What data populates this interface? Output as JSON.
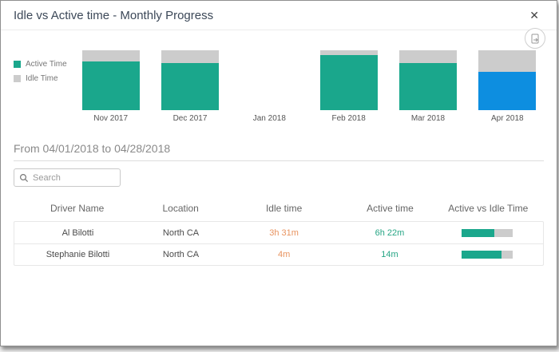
{
  "modal": {
    "title": "Idle vs Active time - Monthly Progress",
    "close_icon": "✕"
  },
  "colors": {
    "active": "#1aa78c",
    "active_highlight": "#0d8ee0",
    "idle": "#cccccc",
    "idle_text": "#e8935f",
    "active_text": "#27a585"
  },
  "legend": {
    "items": [
      {
        "label": "Active Time",
        "color": "#1aa78c"
      },
      {
        "label": "Idle Time",
        "color": "#cccccc"
      }
    ]
  },
  "chart_data": {
    "type": "bar",
    "stacked": true,
    "categories": [
      "Nov 2017",
      "Dec 2017",
      "Jan 2018",
      "Feb 2018",
      "Mar 2018",
      "Apr 2018"
    ],
    "series": [
      {
        "name": "Active Time",
        "values": [
          82,
          79,
          0,
          92,
          79,
          64
        ]
      },
      {
        "name": "Idle Time",
        "values": [
          18,
          21,
          0,
          8,
          21,
          36
        ]
      }
    ],
    "unit": "percent_of_bar",
    "highlight_index": 5,
    "legend_position": "left",
    "grid": false,
    "ylim": [
      0,
      100
    ]
  },
  "filters": {
    "date_range": "From 04/01/2018 to 04/28/2018",
    "search_placeholder": "Search"
  },
  "table": {
    "columns": [
      "Driver Name",
      "Location",
      "Idle time",
      "Active time",
      "Active vs Idle Time"
    ],
    "rows": [
      {
        "driver": "Al Bilotti",
        "location": "North CA",
        "idle": "3h 31m",
        "active": "6h 22m",
        "active_pct": 64
      },
      {
        "driver": "Stephanie Bilotti",
        "location": "North CA",
        "idle": "4m",
        "active": "14m",
        "active_pct": 78
      }
    ]
  }
}
